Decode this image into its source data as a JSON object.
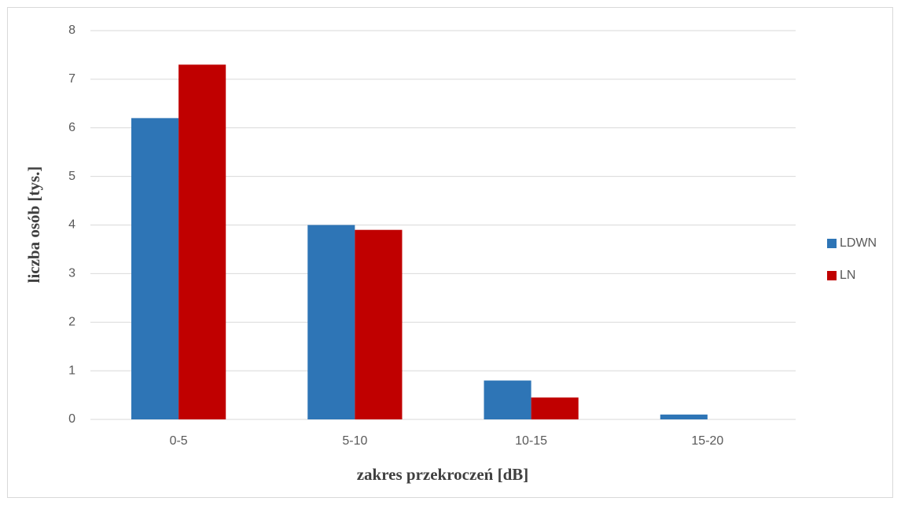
{
  "chart_data": {
    "type": "bar",
    "x_label": "zakres przekroczeń [dB]",
    "y_label": "liczba osób [tys.]",
    "categories": [
      "0-5",
      "5-10",
      "10-15",
      "15-20"
    ],
    "series": [
      {
        "name": "LDWN",
        "color": "#2e75b6",
        "values": [
          6.2,
          4.0,
          0.8,
          0.1
        ]
      },
      {
        "name": "LN",
        "color": "#c00000",
        "values": [
          7.3,
          3.9,
          0.45,
          0
        ]
      }
    ],
    "ylim": [
      0,
      8
    ],
    "yticks": [
      0,
      1,
      2,
      3,
      4,
      5,
      6,
      7,
      8
    ],
    "grid": true,
    "legend": "right"
  }
}
